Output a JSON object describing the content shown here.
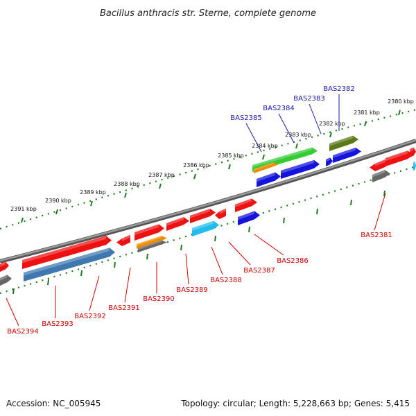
{
  "title": "Bacillus anthracis str. Sterne, complete genome",
  "footer": {
    "accession": "Accession: NC_005945",
    "summary": "Topology: circular; Length: 5,228,663 bp; Genes: 5,415"
  },
  "ticks": [
    {
      "label": "2380 kbp",
      "pos": 2380
    },
    {
      "label": "2381 kbp",
      "pos": 2381
    },
    {
      "label": "2382 kbp",
      "pos": 2382
    },
    {
      "label": "2383 kbp",
      "pos": 2383
    },
    {
      "label": "2384 kbp",
      "pos": 2384
    },
    {
      "label": "2385 kbp",
      "pos": 2385
    },
    {
      "label": "2386 kbp",
      "pos": 2386
    },
    {
      "label": "2387 kbp",
      "pos": 2387
    },
    {
      "label": "2388 kbp",
      "pos": 2388
    },
    {
      "label": "2389 kbp",
      "pos": 2389
    },
    {
      "label": "2390 kbp",
      "pos": 2390
    },
    {
      "label": "2391 kbp",
      "pos": 2391
    }
  ],
  "upper_labels": [
    {
      "name": "BAS2382",
      "color": "#1a1aa6"
    },
    {
      "name": "BAS2383",
      "color": "#1a1aa6"
    },
    {
      "name": "BAS2384",
      "color": "#1a1aa6"
    },
    {
      "name": "BAS2385",
      "color": "#1a1aa6"
    }
  ],
  "lower_labels": [
    {
      "name": "BAS2381",
      "color": "#cc0000"
    },
    {
      "name": "BAS2386",
      "color": "#cc0000"
    },
    {
      "name": "BAS2387",
      "color": "#cc0000"
    },
    {
      "name": "BAS2388",
      "color": "#cc0000"
    },
    {
      "name": "BAS2389",
      "color": "#cc0000"
    },
    {
      "name": "BAS2390",
      "color": "#cc0000"
    },
    {
      "name": "BAS2391",
      "color": "#cc0000"
    },
    {
      "name": "BAS2392",
      "color": "#cc0000"
    },
    {
      "name": "BAS2393",
      "color": "#cc0000"
    },
    {
      "name": "BAS2394",
      "color": "#cc0000"
    }
  ],
  "colors": {
    "backbone": "#777777",
    "tick_dots": "#1f7a1f",
    "red": "#ee1111",
    "blue": "#1414dd",
    "green": "#33cc33",
    "olive": "#5a7a1a",
    "orange": "#f08c00",
    "cyan": "#22bbee",
    "steel": "#3f78b0",
    "gray": "#666666"
  }
}
